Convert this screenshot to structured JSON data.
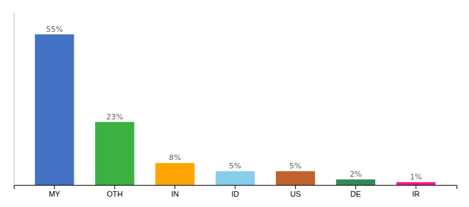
{
  "chart_data": {
    "type": "bar",
    "categories": [
      "MY",
      "OTH",
      "IN",
      "ID",
      "US",
      "DE",
      "IR"
    ],
    "values": [
      55,
      23,
      8,
      5,
      5,
      2,
      1
    ],
    "value_labels": [
      "55%",
      "23%",
      "8%",
      "5%",
      "5%",
      "2%",
      "1%"
    ],
    "colors": [
      "#4472C4",
      "#3CB043",
      "#FFA500",
      "#87CEEB",
      "#C0622A",
      "#2E8B57",
      "#FF1493"
    ],
    "ylim": [
      0,
      63
    ],
    "data_labels": true,
    "tick_labels": "x"
  }
}
